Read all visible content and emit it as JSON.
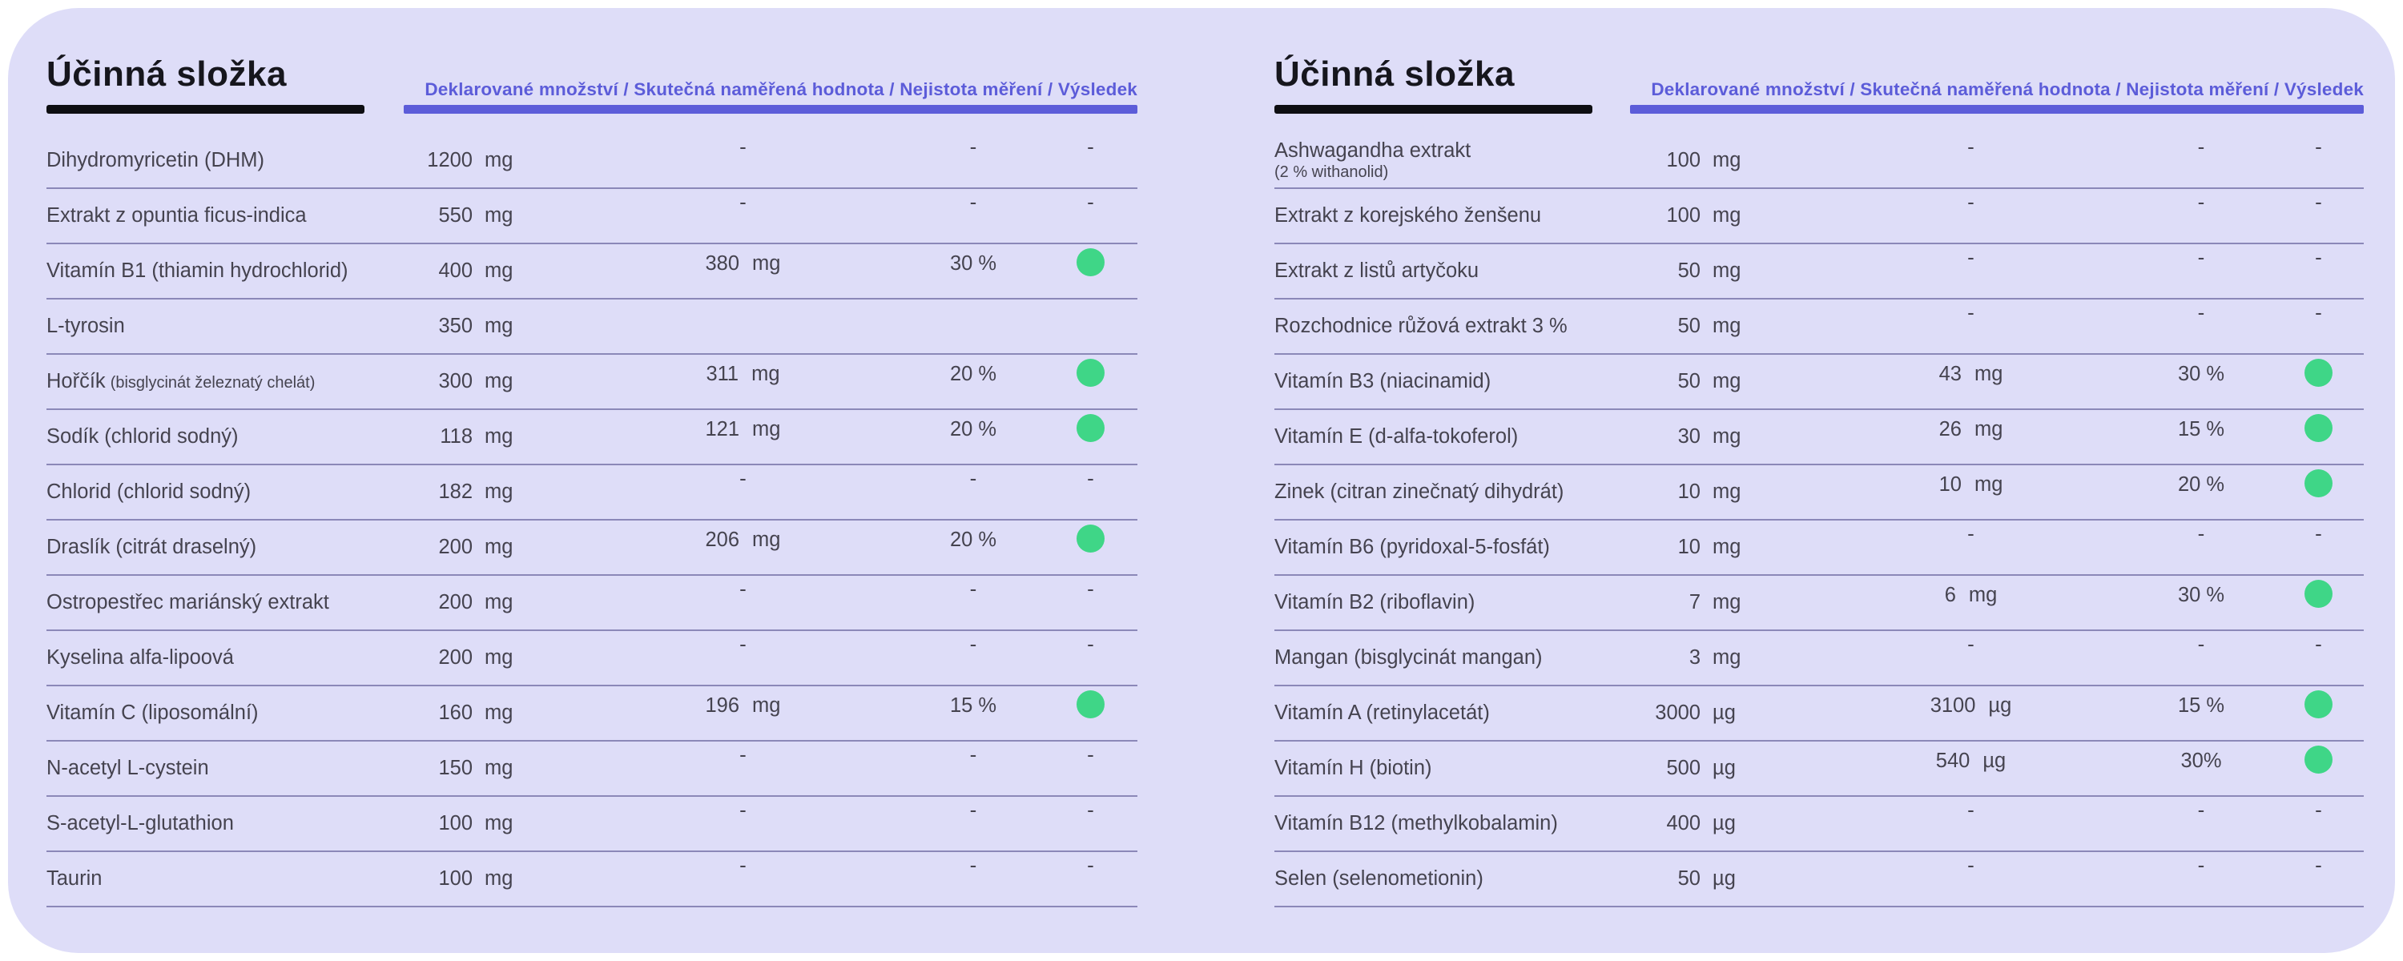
{
  "theme": {
    "page_bg": "#ffffff",
    "card_bg": "#deddf8",
    "accent": "#5c5cd9",
    "bar_black": "#0e0e12",
    "title_color": "#16161d",
    "text_color": "#45434f",
    "line_color": "#8b88b8",
    "pass_green": "#3fd687"
  },
  "icons": {
    "pass_dot": "green-circle"
  },
  "tables": [
    {
      "title": "Účinná složka",
      "columns_label": "Deklarované množství / Skutečná naměřená hodnota / Nejistota měření / Výsledek",
      "rows": [
        {
          "name": "Dihydromyricetin (DHM)",
          "name_sub": "",
          "sub_layout": "inline",
          "declared": "1200",
          "unit": "mg",
          "measured": "-",
          "measured_unit": "",
          "uncertainty": "-",
          "result": "-"
        },
        {
          "name": "Extrakt z opuntia ficus-indica",
          "name_sub": "",
          "sub_layout": "inline",
          "declared": "550",
          "unit": "mg",
          "measured": "-",
          "measured_unit": "",
          "uncertainty": "-",
          "result": "-"
        },
        {
          "name": "Vitamín B1 (thiamin hydrochlorid)",
          "name_sub": "",
          "sub_layout": "inline",
          "declared": "400",
          "unit": "mg",
          "measured": "380",
          "measured_unit": "mg",
          "uncertainty": "30 %",
          "result": "pass"
        },
        {
          "name": "L-tyrosin",
          "name_sub": "",
          "sub_layout": "inline",
          "declared": "350",
          "unit": "mg",
          "measured": "",
          "measured_unit": "",
          "uncertainty": "",
          "result": ""
        },
        {
          "name": "Hořčík",
          "name_sub": "(bisglycinát železnatý chelát)",
          "sub_layout": "inline",
          "declared": "300",
          "unit": "mg",
          "measured": "311",
          "measured_unit": "mg",
          "uncertainty": "20 %",
          "result": "pass"
        },
        {
          "name": "Sodík (chlorid sodný)",
          "name_sub": "",
          "sub_layout": "inline",
          "declared": "118",
          "unit": "mg",
          "measured": "121",
          "measured_unit": "mg",
          "uncertainty": "20 %",
          "result": "pass"
        },
        {
          "name": "Chlorid (chlorid sodný)",
          "name_sub": "",
          "sub_layout": "inline",
          "declared": "182",
          "unit": "mg",
          "measured": "-",
          "measured_unit": "",
          "uncertainty": "-",
          "result": "-"
        },
        {
          "name": "Draslík (citrát draselný)",
          "name_sub": "",
          "sub_layout": "inline",
          "declared": "200",
          "unit": "mg",
          "measured": "206",
          "measured_unit": "mg",
          "uncertainty": "20 %",
          "result": "pass"
        },
        {
          "name": "Ostropestřec mariánský extrakt",
          "name_sub": "",
          "sub_layout": "inline",
          "declared": "200",
          "unit": "mg",
          "measured": "-",
          "measured_unit": "",
          "uncertainty": "-",
          "result": "-"
        },
        {
          "name": "Kyselina alfa-lipoová",
          "name_sub": "",
          "sub_layout": "inline",
          "declared": "200",
          "unit": "mg",
          "measured": "-",
          "measured_unit": "",
          "uncertainty": "-",
          "result": "-"
        },
        {
          "name": "Vitamín C (liposomální)",
          "name_sub": "",
          "sub_layout": "inline",
          "declared": "160",
          "unit": "mg",
          "measured": "196",
          "measured_unit": "mg",
          "uncertainty": "15 %",
          "result": "pass"
        },
        {
          "name": "N-acetyl L-cystein",
          "name_sub": "",
          "sub_layout": "inline",
          "declared": "150",
          "unit": "mg",
          "measured": "-",
          "measured_unit": "",
          "uncertainty": "-",
          "result": "-"
        },
        {
          "name": "S-acetyl-L-glutathion",
          "name_sub": "",
          "sub_layout": "inline",
          "declared": "100",
          "unit": "mg",
          "measured": "-",
          "measured_unit": "",
          "uncertainty": "-",
          "result": "-"
        },
        {
          "name": "Taurin",
          "name_sub": "",
          "sub_layout": "inline",
          "declared": "100",
          "unit": "mg",
          "measured": "-",
          "measured_unit": "",
          "uncertainty": "-",
          "result": "-"
        }
      ]
    },
    {
      "title": "Účinná složka",
      "columns_label": "Deklarované množství / Skutečná naměřená hodnota / Nejistota měření / Výsledek",
      "rows": [
        {
          "name": "Ashwagandha extrakt",
          "name_sub": "(2 % withanolid)",
          "sub_layout": "block",
          "declared": "100",
          "unit": "mg",
          "measured": "-",
          "measured_unit": "",
          "uncertainty": "-",
          "result": "-"
        },
        {
          "name": "Extrakt z korejského ženšenu",
          "name_sub": "",
          "sub_layout": "inline",
          "declared": "100",
          "unit": "mg",
          "measured": "-",
          "measured_unit": "",
          "uncertainty": "-",
          "result": "-"
        },
        {
          "name": "Extrakt z listů artyčoku",
          "name_sub": "",
          "sub_layout": "inline",
          "declared": "50",
          "unit": "mg",
          "measured": "-",
          "measured_unit": "",
          "uncertainty": "-",
          "result": "-"
        },
        {
          "name": "Rozchodnice růžová extrakt 3 %",
          "name_sub": "",
          "sub_layout": "inline",
          "declared": "50",
          "unit": "mg",
          "measured": "-",
          "measured_unit": "",
          "uncertainty": "-",
          "result": "-"
        },
        {
          "name": "Vitamín B3 (niacinamid)",
          "name_sub": "",
          "sub_layout": "inline",
          "declared": "50",
          "unit": "mg",
          "measured": "43",
          "measured_unit": "mg",
          "uncertainty": "30 %",
          "result": "pass"
        },
        {
          "name": "Vitamín E (d-alfa-tokoferol)",
          "name_sub": "",
          "sub_layout": "inline",
          "declared": "30",
          "unit": "mg",
          "measured": "26",
          "measured_unit": "mg",
          "uncertainty": "15 %",
          "result": "pass"
        },
        {
          "name": "Zinek (citran zinečnatý dihydrát)",
          "name_sub": "",
          "sub_layout": "inline",
          "declared": "10",
          "unit": "mg",
          "measured": "10",
          "measured_unit": "mg",
          "uncertainty": "20 %",
          "result": "pass"
        },
        {
          "name": "Vitamín B6 (pyridoxal-5-fosfát)",
          "name_sub": "",
          "sub_layout": "inline",
          "declared": "10",
          "unit": "mg",
          "measured": "-",
          "measured_unit": "",
          "uncertainty": "-",
          "result": "-"
        },
        {
          "name": "Vitamín B2 (riboflavin)",
          "name_sub": "",
          "sub_layout": "inline",
          "declared": "7",
          "unit": "mg",
          "measured": "6",
          "measured_unit": "mg",
          "uncertainty": "30 %",
          "result": "pass"
        },
        {
          "name": "Mangan (bisglycinát mangan)",
          "name_sub": "",
          "sub_layout": "inline",
          "declared": "3",
          "unit": "mg",
          "measured": "-",
          "measured_unit": "",
          "uncertainty": "-",
          "result": "-"
        },
        {
          "name": "Vitamín A (retinylacetát)",
          "name_sub": "",
          "sub_layout": "inline",
          "declared": "3000",
          "unit": "µg",
          "measured": "3100",
          "measured_unit": "µg",
          "uncertainty": "15 %",
          "result": "pass"
        },
        {
          "name": "Vitamín H (biotin)",
          "name_sub": "",
          "sub_layout": "inline",
          "declared": "500",
          "unit": "µg",
          "measured": "540",
          "measured_unit": "µg",
          "uncertainty": "30%",
          "result": "pass"
        },
        {
          "name": "Vitamín B12 (methylkobalamin)",
          "name_sub": "",
          "sub_layout": "inline",
          "declared": "400",
          "unit": "µg",
          "measured": "-",
          "measured_unit": "",
          "uncertainty": "-",
          "result": "-"
        },
        {
          "name": "Selen (selenometionin)",
          "name_sub": "",
          "sub_layout": "inline",
          "declared": "50",
          "unit": "µg",
          "measured": "-",
          "measured_unit": "",
          "uncertainty": "-",
          "result": "-"
        }
      ]
    }
  ]
}
